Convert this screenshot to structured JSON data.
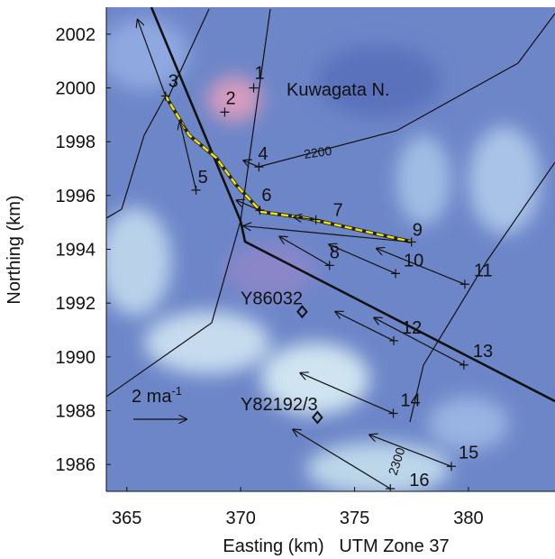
{
  "chart_data": {
    "type": "map",
    "xlabel": "Easting (km)   UTM Zone 37",
    "ylabel": "Northing (km)",
    "xlim": [
      364.1,
      383.8
    ],
    "ylim": [
      1985,
      2003
    ],
    "xticks": [
      365,
      370,
      375,
      380
    ],
    "yticks": [
      1986,
      1988,
      1990,
      1992,
      1994,
      1996,
      1998,
      2000,
      2002
    ],
    "stations": {
      "labels": [
        "1",
        "2",
        "3",
        "4",
        "5",
        "6",
        "7",
        "8",
        "9",
        "10",
        "11",
        "12",
        "13",
        "14",
        "15",
        "16"
      ],
      "x": [
        370.57,
        369.3,
        366.7,
        370.8,
        368.04,
        370.84,
        373.3,
        373.9,
        377.5,
        376.8,
        379.84,
        376.72,
        379.8,
        376.7,
        379.25,
        376.57
      ],
      "y": [
        2000.0,
        1999.1,
        1999.7,
        1997.06,
        1996.2,
        1995.45,
        1995.1,
        1993.4,
        1994.27,
        1993.1,
        1992.7,
        1990.6,
        1989.7,
        1987.9,
        1985.93,
        1985.1
      ],
      "tip_x": [
        null,
        null,
        365.47,
        370.13,
        367.33,
        369.82,
        372.34,
        371.71,
        370.13,
        373.88,
        375.97,
        374.16,
        375.86,
        372.62,
        375.66,
        372.3
      ],
      "tip_y": [
        null,
        null,
        2002.54,
        1997.3,
        1998.74,
        1995.82,
        1995.2,
        1994.47,
        1994.87,
        1994.18,
        1994.03,
        1991.68,
        1991.45,
        1989.4,
        1987.1,
        1987.3
      ]
    },
    "samples": {
      "labels": [
        "Y86032",
        "Y82192/3"
      ],
      "x": [
        372.7,
        373.37
      ],
      "y": [
        1991.68,
        1987.75
      ]
    },
    "place_label": "Kuwagata N.",
    "contours": [
      "2200",
      "2300"
    ],
    "scale_arrow": {
      "label": "2 ma",
      "label_sup": "-1"
    }
  }
}
